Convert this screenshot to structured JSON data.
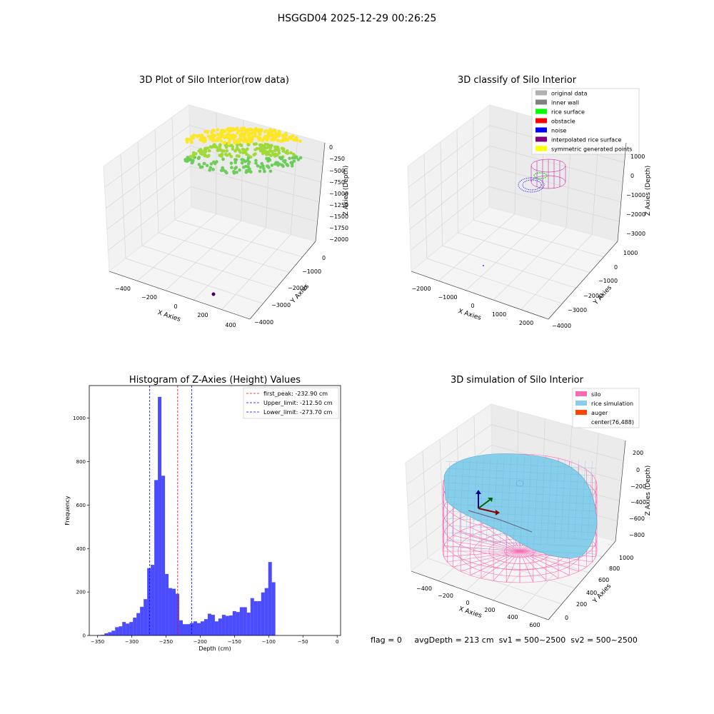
{
  "suptitle": "HSGGD04 2025-12-29 00:26:25",
  "footer": {
    "flag": "flag = 0",
    "avg_depth": "avgDepth = 213 cm",
    "sv1": "sv1 = 500~2500",
    "sv2": "sv2 = 500~2500"
  },
  "panel1": {
    "title": "3D Plot of Silo Interior(row data)",
    "xlabel": "X Axies",
    "ylabel": "Y Axies",
    "zlabel": "Z Axies (Depth)",
    "xticks": [
      "−400",
      "−200",
      "0",
      "200",
      "400"
    ],
    "yticks": [
      "0",
      "−1000",
      "−2000",
      "−3000",
      "−4000"
    ],
    "zticks": [
      "0",
      "−250",
      "−500",
      "−750",
      "−1000",
      "−1250",
      "−1500",
      "−1750",
      "−2000"
    ],
    "colors": {
      "high": "#fde725",
      "mid": "#a0da39",
      "low": "#6ccd5a",
      "outlier": "#440154"
    }
  },
  "panel2": {
    "title": "3D classify of Silo Interior",
    "xlabel": "X Axies",
    "ylabel": "Y Axies",
    "zlabel": "Z Axies (Depth)",
    "xticks": [
      "−2000",
      "−1000",
      "0",
      "1000",
      "2000"
    ],
    "yticks": [
      "1000",
      "0",
      "−1000",
      "−2000",
      "−3000",
      "−4000"
    ],
    "zticks": [
      "1000",
      "0",
      "−1000",
      "−2000",
      "−3000"
    ],
    "legend": [
      {
        "label": "original data",
        "color": "#b0b0b0"
      },
      {
        "label": "inner wall",
        "color": "#808080"
      },
      {
        "label": "rice surface",
        "color": "#00ff00"
      },
      {
        "label": "obstacle",
        "color": "#ff0000"
      },
      {
        "label": "noise",
        "color": "#0000ff"
      },
      {
        "label": "interpolated rice surface",
        "color": "#800080"
      },
      {
        "label": "symmetric generated points",
        "color": "#ffff00"
      }
    ]
  },
  "panel4": {
    "title": "3D simulation of Silo Interior",
    "xlabel": "X Axies",
    "ylabel": "Y Axies",
    "zlabel": "Z Axies (Depth)",
    "xticks": [
      "−400",
      "−200",
      "0",
      "200",
      "400",
      "600"
    ],
    "yticks": [
      "0",
      "200",
      "400",
      "600",
      "800",
      "1000"
    ],
    "zticks": [
      "200",
      "0",
      "−200",
      "−400",
      "−600",
      "−800"
    ],
    "legend": [
      {
        "label": "silo",
        "color": "#ff69b4"
      },
      {
        "label": "rice simulation",
        "color": "#87ceeb"
      },
      {
        "label": "auger",
        "color": "#ff4500"
      },
      {
        "label": "center(76,488)",
        "color": ""
      }
    ]
  },
  "chart_data": [
    {
      "type": "bar",
      "title": "Histogram of Z-Axies (Height) Values",
      "xlabel": "Depth (cm)",
      "ylabel": "Frequency",
      "xlim": [
        -362,
        5
      ],
      "ylim": [
        0,
        1150
      ],
      "xticks": [
        -350,
        -300,
        -250,
        -200,
        -150,
        -100,
        -50,
        0
      ],
      "xtick_labels": [
        "−350",
        "−300",
        "−250",
        "−200",
        "−150",
        "−100",
        "−50",
        "0"
      ],
      "yticks": [
        0,
        200,
        400,
        600,
        800,
        1000
      ],
      "bin_width": 5.2,
      "bin_start": -350.2,
      "values": [
        2,
        3,
        10,
        15,
        22,
        38,
        42,
        62,
        55,
        62,
        82,
        103,
        132,
        167,
        310,
        325,
        715,
        1098,
        735,
        283,
        218,
        215,
        192,
        70,
        52,
        52,
        57,
        65,
        57,
        65,
        75,
        100,
        95,
        65,
        78,
        95,
        90,
        92,
        112,
        108,
        130,
        130,
        105,
        172,
        158,
        158,
        198,
        218,
        338,
        245
      ],
      "bar_color": "#0000ff",
      "vlines": [
        {
          "name": "first_peak: -232.90 cm",
          "x": -232.9,
          "color": "#ff0000"
        },
        {
          "name": "Upper_limit: -212.50 cm",
          "x": -212.5,
          "color": "#0000ff"
        },
        {
          "name": "Lower_limit: -273.70 cm",
          "x": -273.7,
          "color": "#0000ff"
        }
      ],
      "legend_position": "top-right"
    }
  ]
}
